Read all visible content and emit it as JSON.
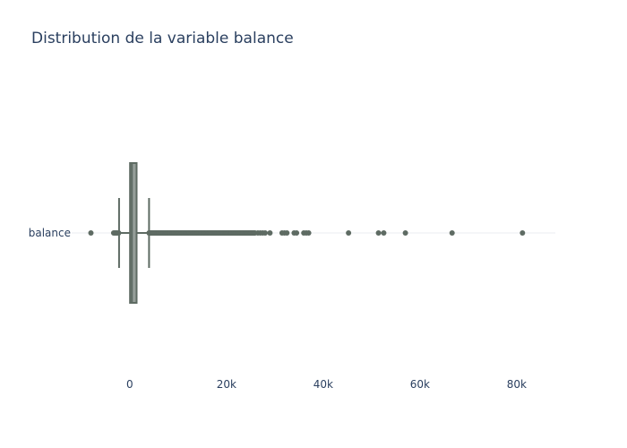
{
  "chart_data": {
    "type": "box",
    "title": "Distribution de la variable balance",
    "orientation": "horizontal",
    "series": [
      {
        "name": "balance",
        "q1": 72,
        "median": 448,
        "q3": 1428,
        "lower_fence": -2200,
        "upper_fence": 4000,
        "outliers_low": [
          -8019,
          -3313,
          -3058,
          -2827,
          -2604,
          -2282
        ],
        "outlier_dense_range": [
          4000,
          26000
        ],
        "outliers_high": [
          26500,
          27000,
          27500,
          28000,
          29000,
          31500,
          32000,
          32500,
          34000,
          34500,
          36000,
          36500,
          37000,
          45248,
          51439,
          52527,
          57000,
          66653,
          81204
        ]
      }
    ],
    "xaxis": {
      "range": [
        -12000,
        88000
      ],
      "tickvals": [
        0,
        20000,
        40000,
        60000,
        80000
      ],
      "ticktext": [
        "0",
        "20k",
        "40k",
        "60k",
        "80k"
      ]
    },
    "grid": true,
    "colors": {
      "box_fill": "#959e99",
      "box_line": "#5e6b63",
      "marker": "#5e6b63",
      "grid": "#ebeef2",
      "text": "#2a3f5f"
    }
  }
}
